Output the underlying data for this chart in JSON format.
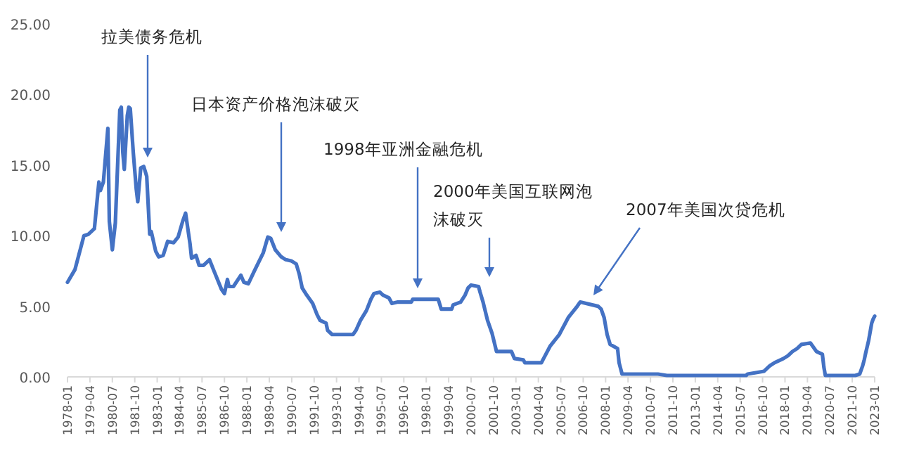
{
  "chart_data": {
    "type": "line",
    "color": "#4472c4",
    "x": [
      "1978-01",
      "1978-06",
      "1978-12",
      "1979-03",
      "1979-07",
      "1979-10",
      "1979-11",
      "1980-01",
      "1980-04",
      "1980-05",
      "1980-07",
      "1980-09",
      "1980-12",
      "1981-01",
      "1981-02",
      "1981-03",
      "1981-05",
      "1981-06",
      "1981-07",
      "1981-09",
      "1981-11",
      "1981-12",
      "1982-02",
      "1982-04",
      "1982-06",
      "1982-08",
      "1982-09",
      "1982-12",
      "1983-02",
      "1983-05",
      "1983-08",
      "1983-12",
      "1984-03",
      "1984-06",
      "1984-08",
      "1984-11",
      "1984-12",
      "1985-03",
      "1985-05",
      "1985-08",
      "1985-12",
      "1986-03",
      "1986-08",
      "1986-10",
      "1986-12",
      "1987-01",
      "1987-04",
      "1987-09",
      "1987-11",
      "1988-02",
      "1988-06",
      "1988-12",
      "1989-03",
      "1989-05",
      "1989-08",
      "1989-12",
      "1990-03",
      "1990-07",
      "1990-10",
      "1990-12",
      "1991-02",
      "1991-05",
      "1991-09",
      "1991-12",
      "1992-02",
      "1992-06",
      "1992-07",
      "1992-10",
      "1993-06",
      "1993-12",
      "1994-02",
      "1994-05",
      "1994-09",
      "1994-12",
      "1995-02",
      "1995-06",
      "1995-08",
      "1995-12",
      "1996-02",
      "1996-06",
      "1997-03",
      "1997-04",
      "1998-09",
      "1998-11",
      "1999-06",
      "1999-07",
      "1999-12",
      "2000-03",
      "2000-05",
      "2000-07",
      "2000-12",
      "2001-01",
      "2001-03",
      "2001-06",
      "2001-09",
      "2001-12",
      "2002-10",
      "2002-12",
      "2003-06",
      "2003-07",
      "2004-06",
      "2004-08",
      "2004-12",
      "2005-06",
      "2005-12",
      "2006-06",
      "2006-08",
      "2007-08",
      "2007-10",
      "2007-12",
      "2008-02",
      "2008-04",
      "2008-09",
      "2008-10",
      "2008-12",
      "2009-06",
      "2010-12",
      "2011-06",
      "2015-11",
      "2015-12",
      "2016-11",
      "2016-12",
      "2017-03",
      "2017-06",
      "2017-12",
      "2018-03",
      "2018-06",
      "2018-09",
      "2018-12",
      "2019-06",
      "2019-08",
      "2019-10",
      "2020-02",
      "2020-03",
      "2020-04",
      "2021-12",
      "2022-03",
      "2022-05",
      "2022-06",
      "2022-07",
      "2022-09",
      "2022-11",
      "2022-12",
      "2023-01"
    ],
    "values": [
      6.7,
      7.6,
      10.0,
      10.1,
      10.5,
      13.8,
      13.2,
      13.8,
      17.6,
      11.0,
      9.0,
      10.9,
      18.9,
      19.1,
      15.9,
      14.7,
      18.5,
      19.1,
      19.0,
      15.9,
      13.3,
      12.4,
      14.8,
      14.9,
      14.2,
      10.1,
      10.3,
      8.9,
      8.5,
      8.6,
      9.6,
      9.5,
      9.9,
      11.0,
      11.6,
      9.4,
      8.4,
      8.6,
      7.9,
      7.9,
      8.3,
      7.5,
      6.2,
      5.9,
      6.9,
      6.4,
      6.4,
      7.2,
      6.7,
      6.6,
      7.5,
      8.8,
      9.9,
      9.8,
      9.0,
      8.5,
      8.3,
      8.2,
      8.0,
      7.3,
      6.3,
      5.8,
      5.2,
      4.4,
      4.0,
      3.8,
      3.3,
      3.0,
      3.0,
      3.0,
      3.3,
      4.0,
      4.7,
      5.5,
      5.9,
      6.0,
      5.8,
      5.6,
      5.2,
      5.3,
      5.3,
      5.5,
      5.5,
      4.8,
      4.8,
      5.1,
      5.3,
      5.8,
      6.3,
      6.5,
      6.4,
      6.0,
      5.3,
      4.0,
      3.1,
      1.8,
      1.8,
      1.3,
      1.2,
      1.0,
      1.0,
      1.4,
      2.2,
      3.0,
      4.2,
      5.0,
      5.3,
      5.0,
      4.8,
      4.2,
      3.0,
      2.3,
      2.0,
      1.0,
      0.2,
      0.2,
      0.2,
      0.1,
      0.1,
      0.2,
      0.4,
      0.5,
      0.8,
      1.0,
      1.3,
      1.5,
      1.8,
      2.0,
      2.3,
      2.4,
      2.1,
      1.8,
      1.6,
      0.7,
      0.1,
      0.1,
      0.2,
      0.8,
      1.2,
      1.7,
      2.6,
      3.8,
      4.1,
      4.3
    ],
    "xlim": [
      "1978-01",
      "2023-01"
    ],
    "xticks": [
      "1978-01",
      "1979-04",
      "1980-07",
      "1981-10",
      "1983-01",
      "1984-04",
      "1985-07",
      "1986-10",
      "1988-01",
      "1989-04",
      "1990-07",
      "1991-10",
      "1993-01",
      "1994-04",
      "1995-07",
      "1996-10",
      "1998-01",
      "1999-04",
      "2000-07",
      "2001-10",
      "2003-01",
      "2004-04",
      "2005-07",
      "2006-10",
      "2008-01",
      "2009-04",
      "2010-07",
      "2011-10",
      "2013-01",
      "2014-04",
      "2015-07",
      "2016-10",
      "2018-01",
      "2019-04",
      "2020-07",
      "2021-10",
      "2023-01"
    ],
    "ylim": [
      0,
      25
    ],
    "yticks": [
      {
        "value": 0,
        "label": "0.00"
      },
      {
        "value": 5,
        "label": "5.00"
      },
      {
        "value": 10,
        "label": "10.00"
      },
      {
        "value": 15,
        "label": "15.00"
      },
      {
        "value": 20,
        "label": "20.00"
      },
      {
        "value": 25,
        "label": "25.00"
      }
    ],
    "annotations": [
      "拉美债务危机",
      "日本资产价格泡沫破灭",
      "1998年亚洲金融危机",
      "2000年美国互联网泡沫破灭",
      "2007年美国次贷危机"
    ]
  }
}
